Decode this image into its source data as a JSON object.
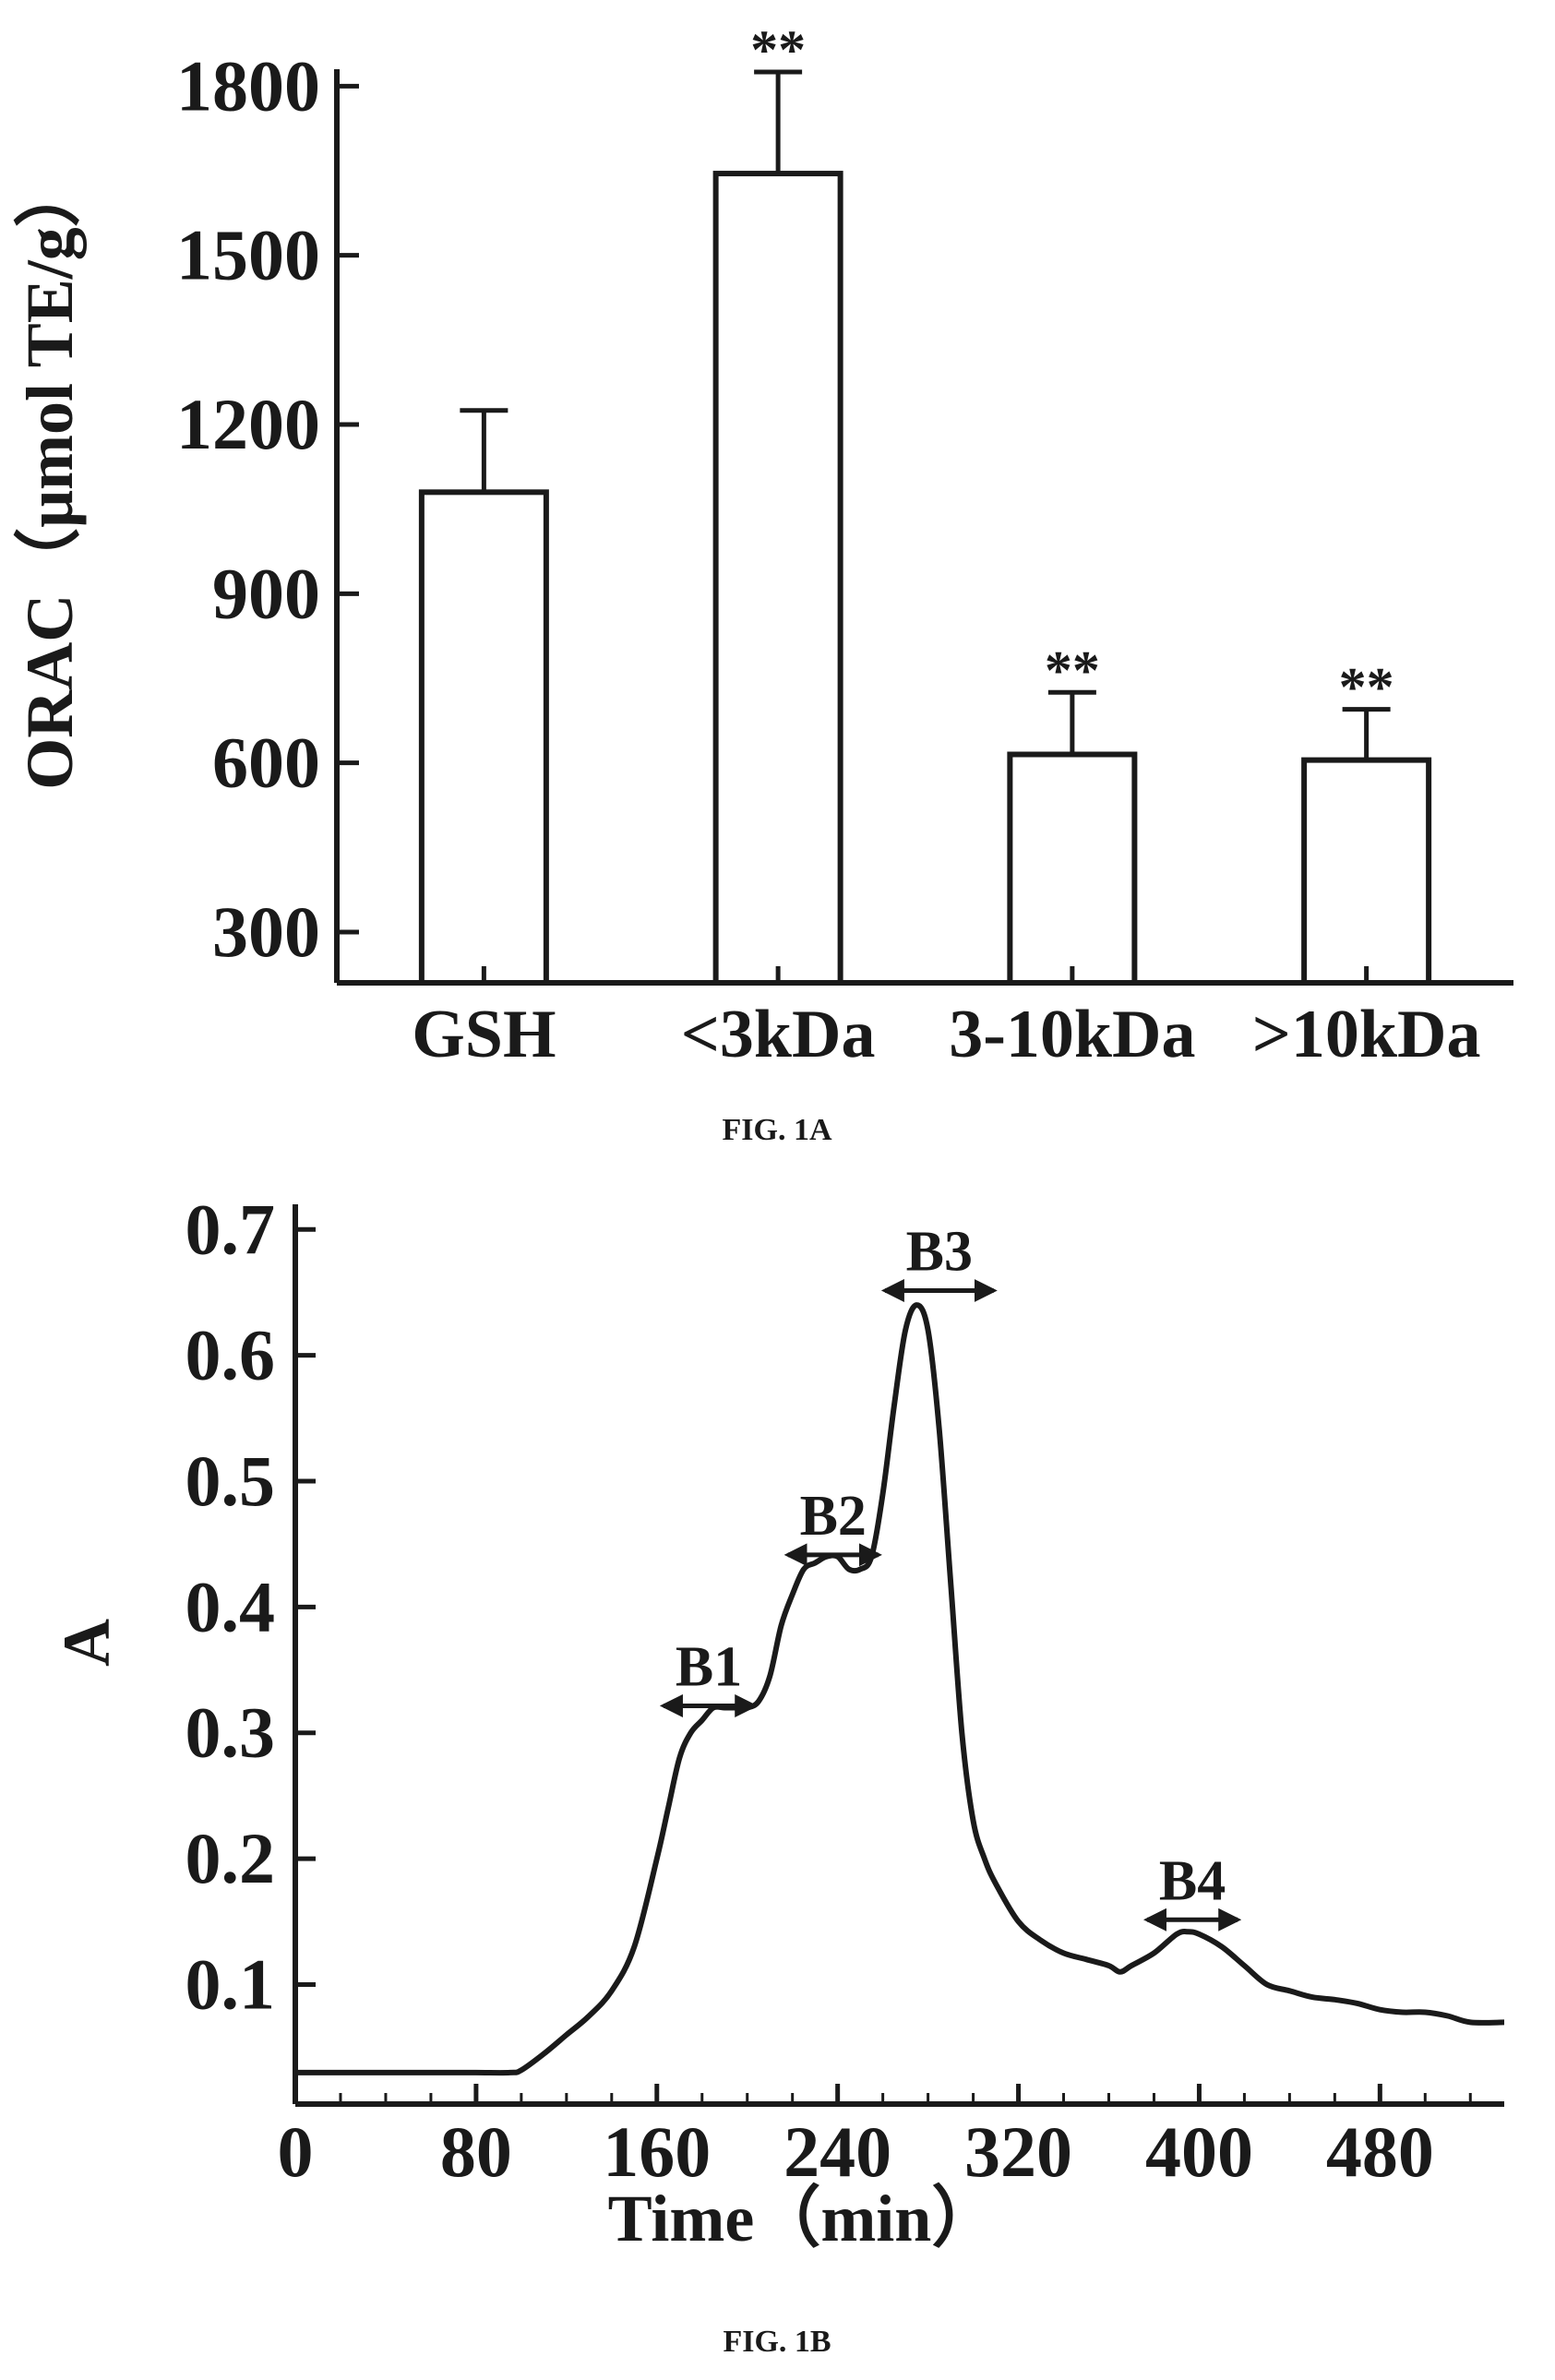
{
  "figures": [
    {
      "caption": "FIG. 1A"
    },
    {
      "caption": "FIG. 1B"
    }
  ],
  "chart_data": [
    {
      "type": "bar",
      "figure": "FIG. 1A",
      "ylabel": "ORAC（μmol TE/g）",
      "xlabel": "",
      "categories": [
        "GSH",
        "<3kDa",
        "3-10kDa",
        ">10kDa"
      ],
      "values": [
        1080,
        1645,
        615,
        605
      ],
      "errors": [
        145,
        180,
        110,
        90
      ],
      "significance": [
        "",
        "**",
        "**",
        "**"
      ],
      "yticks": [
        300,
        600,
        900,
        1200,
        1500,
        1800
      ],
      "ylim": [
        210,
        1830
      ],
      "grid": false,
      "legend": "none",
      "bar_fill": "#ffffff",
      "stroke_color": "#1a1a1a"
    },
    {
      "type": "line",
      "figure": "FIG. 1B",
      "xlabel": "Time（min）",
      "ylabel": "A",
      "xticks": [
        0,
        80,
        160,
        240,
        320,
        400,
        480
      ],
      "yticks": [
        0.1,
        0.2,
        0.3,
        0.4,
        0.5,
        0.6,
        0.7
      ],
      "xlim": [
        0,
        535
      ],
      "ylim": [
        0.005,
        0.72
      ],
      "grid": false,
      "legend": "none",
      "series": [
        {
          "x": [
            0,
            20,
            40,
            60,
            80,
            95,
            100,
            110,
            120,
            130,
            140,
            150,
            160,
            165,
            170,
            175,
            180,
            185,
            190,
            195,
            200,
            205,
            210,
            215,
            220,
            225,
            230,
            235,
            240,
            245,
            250,
            255,
            260,
            265,
            270,
            275,
            280,
            285,
            290,
            295,
            300,
            305,
            310,
            320,
            330,
            340,
            350,
            360,
            365,
            370,
            380,
            390,
            395,
            400,
            410,
            420,
            430,
            440,
            450,
            460,
            470,
            480,
            490,
            500,
            510,
            520,
            535
          ],
          "y": [
            0.03,
            0.03,
            0.03,
            0.03,
            0.03,
            0.03,
            0.032,
            0.045,
            0.06,
            0.075,
            0.095,
            0.13,
            0.2,
            0.24,
            0.28,
            0.3,
            0.31,
            0.32,
            0.32,
            0.32,
            0.32,
            0.325,
            0.345,
            0.385,
            0.41,
            0.43,
            0.435,
            0.44,
            0.44,
            0.43,
            0.43,
            0.44,
            0.49,
            0.56,
            0.62,
            0.64,
            0.62,
            0.54,
            0.42,
            0.3,
            0.23,
            0.2,
            0.18,
            0.15,
            0.135,
            0.125,
            0.12,
            0.115,
            0.11,
            0.115,
            0.125,
            0.14,
            0.142,
            0.14,
            0.13,
            0.115,
            0.1,
            0.095,
            0.09,
            0.088,
            0.085,
            0.08,
            0.078,
            0.078,
            0.075,
            0.07,
            0.07
          ]
        }
      ],
      "annotations": [
        {
          "text": "B1",
          "x_from": 163,
          "x_to": 203,
          "y": 0.32
        },
        {
          "text": "B2",
          "x_from": 218,
          "x_to": 258,
          "y": 0.44
        },
        {
          "text": "B3",
          "x_from": 261,
          "x_to": 309,
          "y": 0.65
        },
        {
          "text": "B4",
          "x_from": 377,
          "x_to": 417,
          "y": 0.15
        }
      ]
    }
  ]
}
